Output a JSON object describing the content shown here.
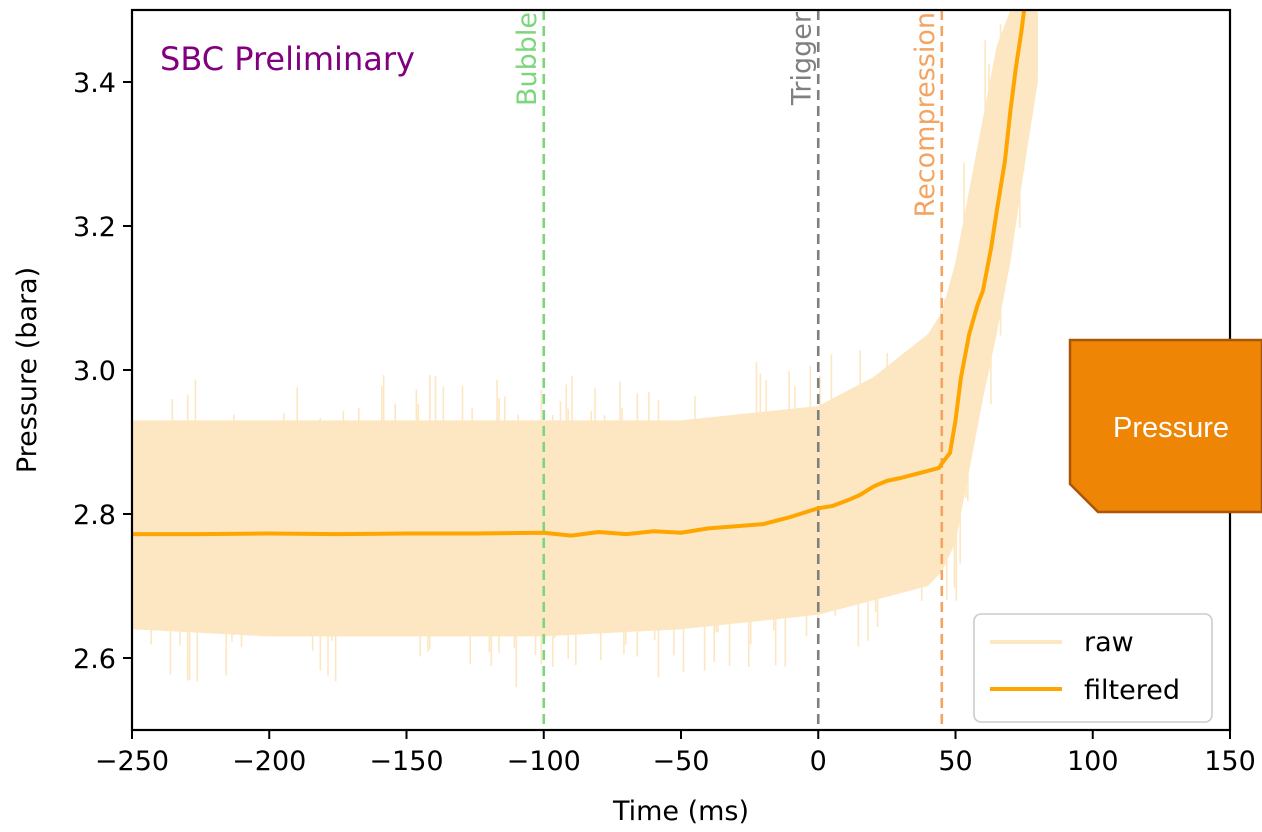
{
  "chart_data": {
    "type": "line",
    "xlabel": "Time (ms)",
    "ylabel": "Pressure (bara)",
    "xlim": [
      -250,
      150
    ],
    "ylim": [
      2.5,
      3.5
    ],
    "x_ticks": [
      -250,
      -200,
      -150,
      -100,
      -50,
      0,
      50,
      100,
      150
    ],
    "x_tick_labels": [
      "−250",
      "−200",
      "−150",
      "−100",
      "−50",
      "0",
      "50",
      "100",
      "150"
    ],
    "y_ticks": [
      2.6,
      2.8,
      3.0,
      3.2,
      3.4
    ],
    "y_tick_labels": [
      "2.6",
      "2.8",
      "3.0",
      "3.2",
      "3.4"
    ],
    "grid": false,
    "annotation": "SBC Preliminary",
    "annotation_color": "#800080",
    "vertical_lines": [
      {
        "label": "Bubble",
        "x": -100,
        "color": "#7cd67c"
      },
      {
        "label": "Trigger",
        "x": 0,
        "color": "#808080"
      },
      {
        "label": "Recompression",
        "x": 45,
        "color": "#f4a460"
      }
    ],
    "legend": {
      "position": "lower right",
      "entries": [
        "raw",
        "filtered"
      ]
    },
    "series": [
      {
        "name": "filtered",
        "color": "#ffa500",
        "x": [
          -250,
          -225,
          -200,
          -175,
          -150,
          -125,
          -100,
          -90,
          -80,
          -70,
          -60,
          -50,
          -40,
          -30,
          -20,
          -10,
          0,
          5,
          10,
          15,
          20,
          25,
          30,
          35,
          40,
          44,
          45,
          48,
          50,
          52,
          55,
          58,
          60,
          63,
          65,
          68,
          70,
          72,
          74,
          75
        ],
        "values": [
          2.772,
          2.772,
          2.773,
          2.772,
          2.773,
          2.773,
          2.774,
          2.77,
          2.775,
          2.772,
          2.776,
          2.774,
          2.78,
          2.783,
          2.786,
          2.796,
          2.808,
          2.811,
          2.818,
          2.826,
          2.838,
          2.846,
          2.85,
          2.855,
          2.86,
          2.864,
          2.87,
          2.885,
          2.93,
          2.99,
          3.05,
          3.09,
          3.11,
          3.17,
          3.22,
          3.29,
          3.36,
          3.42,
          3.47,
          3.5
        ]
      },
      {
        "name": "raw",
        "color": "#fde7c2",
        "envelope": {
          "x": [
            -250,
            -200,
            -150,
            -100,
            -50,
            0,
            20,
            40,
            45,
            50,
            55,
            60,
            65,
            70,
            75,
            80
          ],
          "upper": [
            2.93,
            2.93,
            2.93,
            2.93,
            2.93,
            2.95,
            2.99,
            3.05,
            3.08,
            3.15,
            3.25,
            3.35,
            3.45,
            3.5,
            3.5,
            3.5
          ],
          "lower": [
            2.64,
            2.63,
            2.63,
            2.63,
            2.64,
            2.66,
            2.68,
            2.7,
            2.72,
            2.76,
            2.86,
            2.96,
            3.05,
            3.15,
            3.28,
            3.4
          ]
        }
      }
    ]
  },
  "callout": {
    "text": "Pressure",
    "color": "#ee8505",
    "border": "#a9550a"
  }
}
